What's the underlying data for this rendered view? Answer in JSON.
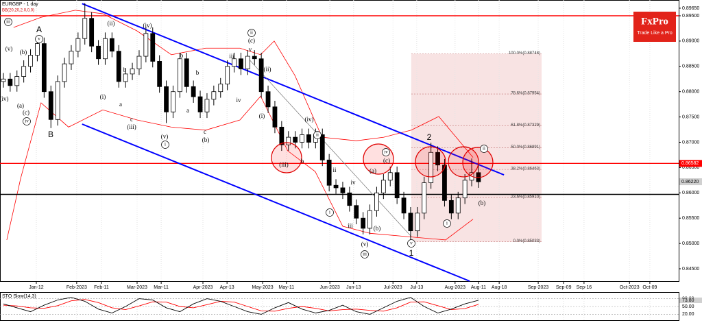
{
  "chart_data": {
    "type": "candlestick",
    "title": "EURGBP - 1 day",
    "indicator_label": "BB(20,20,2.0,0,0)",
    "brand": {
      "name": "FxPro",
      "tagline": "Trade Like a Pro"
    },
    "up_color": "#ffffff",
    "down_color": "#000000",
    "x": [
      1,
      3,
      5,
      7,
      9,
      11,
      13,
      15,
      17,
      19,
      21,
      23,
      25,
      27,
      29,
      31,
      33,
      35,
      37,
      39,
      41,
      43,
      45,
      47,
      49,
      51,
      53,
      55,
      57,
      59,
      61,
      63,
      65,
      67,
      69,
      71,
      73,
      75,
      77,
      79,
      81,
      83,
      85,
      87,
      89,
      91,
      93,
      95,
      97,
      99,
      101,
      103,
      105,
      107,
      109,
      111,
      113,
      115,
      117,
      119,
      121,
      123,
      125,
      127,
      129,
      131,
      133,
      135,
      137,
      139,
      141
    ],
    "open": [
      0.882,
      0.8825,
      0.8812,
      0.883,
      0.885,
      0.8872,
      0.8895,
      0.88,
      0.8745,
      0.882,
      0.8855,
      0.888,
      0.8905,
      0.8945,
      0.889,
      0.8865,
      0.8905,
      0.888,
      0.882,
      0.8835,
      0.8845,
      0.887,
      0.8915,
      0.886,
      0.881,
      0.876,
      0.88,
      0.8865,
      0.881,
      0.879,
      0.876,
      0.8785,
      0.88,
      0.8815,
      0.885,
      0.8865,
      0.8845,
      0.887,
      0.8865,
      0.88,
      0.877,
      0.873,
      0.8695,
      0.871,
      0.87,
      0.8715,
      0.87,
      0.8715,
      0.8665,
      0.8615,
      0.861,
      0.86,
      0.8575,
      0.855,
      0.853,
      0.8565,
      0.86,
      0.8625,
      0.864,
      0.859,
      0.856,
      0.8525,
      0.856,
      0.862,
      0.868,
      0.8655,
      0.8585,
      0.856,
      0.859,
      0.8625,
      0.864
    ],
    "high": [
      0.8837,
      0.8837,
      0.8842,
      0.8862,
      0.8884,
      0.8907,
      0.8907,
      0.8812,
      0.8832,
      0.8867,
      0.8892,
      0.8917,
      0.8975,
      0.8957,
      0.8902,
      0.8917,
      0.8917,
      0.8892,
      0.8847,
      0.8857,
      0.8882,
      0.8927,
      0.8927,
      0.8872,
      0.8822,
      0.8812,
      0.8877,
      0.8877,
      0.8822,
      0.8802,
      0.8797,
      0.8812,
      0.8827,
      0.8862,
      0.8877,
      0.8877,
      0.8882,
      0.8882,
      0.8877,
      0.8812,
      0.8782,
      0.8742,
      0.8722,
      0.8722,
      0.8727,
      0.8727,
      0.8727,
      0.8727,
      0.8677,
      0.8627,
      0.8622,
      0.8612,
      0.8587,
      0.8562,
      0.8577,
      0.8612,
      0.8637,
      0.8652,
      0.8652,
      0.8602,
      0.8572,
      0.8572,
      0.8632,
      0.8699,
      0.8692,
      0.8667,
      0.8597,
      0.8602,
      0.8637,
      0.8668,
      0.866
    ],
    "low": [
      0.8808,
      0.88,
      0.88,
      0.8818,
      0.8838,
      0.886,
      0.8788,
      0.8728,
      0.8733,
      0.8808,
      0.8843,
      0.8868,
      0.8893,
      0.8878,
      0.8853,
      0.8853,
      0.8868,
      0.8808,
      0.8808,
      0.8823,
      0.8833,
      0.8858,
      0.8848,
      0.8798,
      0.8738,
      0.8748,
      0.8788,
      0.8798,
      0.8778,
      0.8748,
      0.8748,
      0.8773,
      0.8788,
      0.8803,
      0.8838,
      0.8833,
      0.8833,
      0.8853,
      0.8788,
      0.8758,
      0.8718,
      0.8683,
      0.8683,
      0.8688,
      0.8688,
      0.8688,
      0.8688,
      0.8653,
      0.8603,
      0.8598,
      0.8588,
      0.8563,
      0.8538,
      0.8518,
      0.8518,
      0.8553,
      0.8588,
      0.8613,
      0.8578,
      0.8548,
      0.8503,
      0.8513,
      0.8548,
      0.8608,
      0.8643,
      0.8573,
      0.8548,
      0.8548,
      0.8578,
      0.8613,
      0.861
    ],
    "close": [
      0.8825,
      0.8812,
      0.883,
      0.885,
      0.8872,
      0.8895,
      0.88,
      0.8745,
      0.882,
      0.8855,
      0.888,
      0.8905,
      0.8945,
      0.889,
      0.8865,
      0.8905,
      0.888,
      0.882,
      0.8835,
      0.8845,
      0.887,
      0.8915,
      0.886,
      0.881,
      0.876,
      0.88,
      0.8865,
      0.881,
      0.879,
      0.876,
      0.8785,
      0.88,
      0.8815,
      0.885,
      0.8865,
      0.8845,
      0.887,
      0.8865,
      0.88,
      0.877,
      0.873,
      0.8695,
      0.871,
      0.87,
      0.8715,
      0.87,
      0.8715,
      0.8665,
      0.8615,
      0.861,
      0.86,
      0.8575,
      0.855,
      0.853,
      0.8565,
      0.86,
      0.8625,
      0.864,
      0.859,
      0.856,
      0.8525,
      0.856,
      0.862,
      0.868,
      0.8655,
      0.8585,
      0.856,
      0.859,
      0.8625,
      0.864,
      0.8622
    ],
    "xlim": [
      0,
      200
    ],
    "xticks": [
      {
        "value": 10.7,
        "label": "Jan-12"
      },
      {
        "value": 22.6,
        "label": "Feb-2023"
      },
      {
        "value": 29.9,
        "label": "Feb-11"
      },
      {
        "value": 40.4,
        "label": "Mar-2023"
      },
      {
        "value": 47.5,
        "label": "Mar-11"
      },
      {
        "value": 59.8,
        "label": "Apr-2023"
      },
      {
        "value": 66.9,
        "label": "Apr-13"
      },
      {
        "value": 77.4,
        "label": "May-2023"
      },
      {
        "value": 84.4,
        "label": "May-11"
      },
      {
        "value": 97.2,
        "label": "Jun-2023"
      },
      {
        "value": 104.2,
        "label": "Jun-13"
      },
      {
        "value": 115.8,
        "label": "Jul-2023"
      },
      {
        "value": 122.8,
        "label": "Jul-13"
      },
      {
        "value": 134.1,
        "label": "Aug-2023"
      },
      {
        "value": 141.0,
        "label": "Aug-11"
      },
      {
        "value": 147.1,
        "label": "Aug-18"
      },
      {
        "value": 158.6,
        "label": "Sep-2023"
      },
      {
        "value": 166.1,
        "label": "Sep-09"
      },
      {
        "value": 172.1,
        "label": "Sep-16"
      },
      {
        "value": 185.5,
        "label": "Oct-2023"
      },
      {
        "value": 191.5,
        "label": "Oct-09"
      }
    ],
    "ylim": [
      0.84256,
      0.89744
    ],
    "yticks": [
      {
        "value": 0.8965,
        "label": "0.89650"
      },
      {
        "value": 0.895,
        "label": "0.89500"
      },
      {
        "value": 0.89,
        "label": "0.89000"
      },
      {
        "value": 0.885,
        "label": "0.88500"
      },
      {
        "value": 0.88,
        "label": "0.88000"
      },
      {
        "value": 0.875,
        "label": "0.87500"
      },
      {
        "value": 0.87,
        "label": "0.87000"
      },
      {
        "value": 0.865,
        "label": "0.86500"
      },
      {
        "value": 0.86,
        "label": "0.86000"
      },
      {
        "value": 0.855,
        "label": "0.85500"
      },
      {
        "value": 0.85,
        "label": "0.85000"
      },
      {
        "value": 0.845,
        "label": "0.84500"
      }
    ],
    "grid": true,
    "levels": [
      {
        "value": 0.895,
        "color": "#ff0000"
      },
      {
        "value": 0.86582,
        "label": "0.86582",
        "color": "#ff0000"
      },
      {
        "value": 0.8597,
        "color": "#000000"
      }
    ],
    "current_price": {
      "value": 0.8622,
      "label": "0.86220"
    },
    "channel": [
      {
        "x": [
          24.2,
          148.5
        ],
        "y": [
          0.8974,
          0.86356
        ],
        "color": "#0000ff"
      },
      {
        "x": [
          24.2,
          138.4
        ],
        "y": [
          0.87359,
          0.84256
        ],
        "color": "#0000ff"
      },
      {
        "x": [
          73.1,
          121.2
        ],
        "y": [
          0.8866,
          0.85137
        ],
        "color": "#777777"
      }
    ],
    "bands": {
      "color": "#ff0000",
      "upper": {
        "x": [
          4,
          12.1,
          22.2,
          30.3,
          40.4,
          50.5,
          60.6,
          70.7,
          76.8,
          80.8,
          86.9,
          94.9,
          105,
          113.1,
          121.2,
          129.3,
          139.4
        ],
        "values": [
          0.8927,
          0.8947,
          0.8961,
          0.8954,
          0.892,
          0.8873,
          0.8886,
          0.8886,
          0.8873,
          0.89,
          0.8832,
          0.871,
          0.8703,
          0.871,
          0.8724,
          0.8751,
          0.867
        ]
      },
      "lower": {
        "x": [
          2,
          6.1,
          12.1,
          20.2,
          30.3,
          40.4,
          50.5,
          60.6,
          70.7,
          76.8,
          84.8,
          92.9,
          101,
          109.1,
          119.2,
          131.3,
          139.4
        ],
        "values": [
          0.8507,
          0.8629,
          0.8778,
          0.873,
          0.8764,
          0.8744,
          0.873,
          0.8724,
          0.8744,
          0.8791,
          0.8683,
          0.8642,
          0.8534,
          0.852,
          0.8514,
          0.8507,
          0.8548
        ]
      }
    },
    "fibonacci": {
      "x": [
        121.2,
        159.6
      ],
      "color": "#f4d0d0",
      "levels": [
        {
          "value": 0.88748,
          "label": "100.0%(0.88748)"
        },
        {
          "value": 0.87954,
          "label": "78.6%(0.87954)"
        },
        {
          "value": 0.87329,
          "label": "61.8%(0.87329)"
        },
        {
          "value": 0.86891,
          "label": "50.0%(0.86891)"
        },
        {
          "value": 0.86463,
          "label": "38.2%(0.86463)"
        },
        {
          "value": 0.8591,
          "label": "23.6%(0.85910)"
        },
        {
          "value": 0.85033,
          "label": "0.0%(0.85033)"
        }
      ]
    },
    "annotations": [
      {
        "text": "iii",
        "circled": true
      },
      {
        "text": "(v)",
        "circled": false
      },
      {
        "text": "(b)",
        "circled": false
      },
      {
        "text": "(a)",
        "circled": false
      },
      {
        "text": "(c)",
        "circled": false
      },
      {
        "text": "iv",
        "circled": true
      },
      {
        "text": "(iv)",
        "circled": false
      },
      {
        "text": "A",
        "circled": false
      },
      {
        "text": "v",
        "circled": true
      },
      {
        "text": "B",
        "circled": false
      },
      {
        "text": "(ii)",
        "circled": false
      },
      {
        "text": "(iv)",
        "circled": false
      },
      {
        "text": "(i)",
        "circled": false
      },
      {
        "text": "b",
        "circled": false
      },
      {
        "text": "a",
        "circled": false
      },
      {
        "text": "c",
        "circled": false
      },
      {
        "text": "(iii)",
        "circled": false
      },
      {
        "text": "(v)",
        "circled": false
      },
      {
        "text": "i",
        "circled": true
      },
      {
        "text": "b",
        "circled": false
      },
      {
        "text": "a",
        "circled": false
      },
      {
        "text": "b",
        "circled": false
      },
      {
        "text": "c",
        "circled": false
      },
      {
        "text": "(b)",
        "circled": false
      },
      {
        "text": "iv",
        "circled": false
      },
      {
        "text": "iii",
        "circled": false
      },
      {
        "text": "v",
        "circled": false
      },
      {
        "text": "(c)",
        "circled": false
      },
      {
        "text": "ii",
        "circled": true
      },
      {
        "text": "(ii)",
        "circled": false
      },
      {
        "text": "(i)",
        "circled": false
      },
      {
        "text": "(iv)",
        "circled": false
      },
      {
        "text": "(iii)",
        "circled": false
      },
      {
        "text": "ii",
        "circled": true
      },
      {
        "text": "b",
        "circled": false
      },
      {
        "text": "ii",
        "circled": false
      },
      {
        "text": "iv",
        "circled": false
      },
      {
        "text": "i",
        "circled": true
      },
      {
        "text": "iii",
        "circled": false
      },
      {
        "text": "(b)",
        "circled": false
      },
      {
        "text": "(v)",
        "circled": false
      },
      {
        "text": "iii",
        "circled": true
      },
      {
        "text": "(a)",
        "circled": false
      },
      {
        "text": "(c)",
        "circled": false
      },
      {
        "text": "iv",
        "circled": true
      },
      {
        "text": "v",
        "circled": true
      },
      {
        "text": "1",
        "circled": false
      },
      {
        "text": "2",
        "circled": false
      },
      {
        "text": "i",
        "circled": true
      },
      {
        "text": "ii",
        "circled": true
      },
      {
        "text": "(b)",
        "circled": false
      }
    ],
    "stochastic": {
      "title": "STO Slow(14,3)",
      "ylim": [
        0,
        100
      ],
      "x": [
        1,
        5,
        9,
        13,
        17,
        21,
        25,
        29,
        33,
        37,
        41,
        45,
        49,
        53,
        57,
        61,
        65,
        69,
        73,
        77,
        81,
        85,
        89,
        93,
        97,
        101,
        105,
        109,
        113,
        117,
        121,
        125,
        129,
        133,
        137,
        141
      ],
      "main": {
        "color": "#000000",
        "values": [
          60,
          45,
          30,
          55,
          75,
          85,
          70,
          40,
          25,
          50,
          80,
          75,
          45,
          30,
          60,
          80,
          70,
          50,
          30,
          20,
          45,
          65,
          40,
          25,
          35,
          55,
          30,
          20,
          45,
          70,
          85,
          50,
          25,
          40,
          60,
          73.8
        ]
      },
      "signal": {
        "color": "#ff0000",
        "values": [
          55,
          52,
          45,
          43,
          53,
          72,
          77,
          65,
          45,
          38,
          52,
          68,
          67,
          50,
          45,
          57,
          70,
          67,
          50,
          33,
          32,
          43,
          50,
          43,
          33,
          38,
          40,
          35,
          32,
          45,
          67,
          68,
          53,
          38,
          42,
          58
        ]
      },
      "levels": [
        {
          "value": 80,
          "label": "80.00"
        },
        {
          "value": 50,
          "label": "50.00"
        },
        {
          "value": 20,
          "label": "20.00"
        }
      ],
      "current": {
        "value": 73.8,
        "label": "73.80"
      }
    }
  }
}
